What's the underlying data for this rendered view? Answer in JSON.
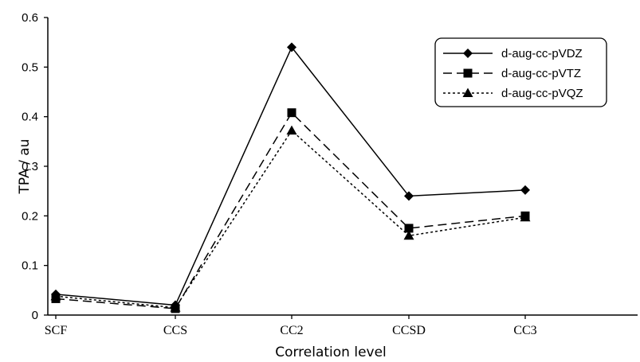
{
  "chart_data": {
    "type": "line",
    "title": "",
    "xlabel": "Correlation level",
    "ylabel": "TPA / au",
    "categories": [
      "SCF",
      "CCS",
      "CC2",
      "CCSD",
      "CC3"
    ],
    "ylim": [
      0,
      0.6
    ],
    "yticks": [
      "0",
      "0.1",
      "0.2",
      "0.3",
      "0.4",
      "0.5",
      "0.6"
    ],
    "grid": false,
    "legend_position": "top-right",
    "series": [
      {
        "name": "d-aug-cc-pVDZ",
        "marker": "diamond",
        "dash": "solid",
        "color": "#000000",
        "values": [
          0.042,
          0.02,
          0.54,
          0.24,
          0.252
        ]
      },
      {
        "name": "d-aug-cc-pVTZ",
        "marker": "square",
        "dash": "dashed",
        "color": "#000000",
        "values": [
          0.033,
          0.013,
          0.408,
          0.175,
          0.2
        ]
      },
      {
        "name": "d-aug-cc-pVQZ",
        "marker": "triangle",
        "dash": "dotted",
        "color": "#000000",
        "values": [
          0.038,
          0.015,
          0.372,
          0.16,
          0.197
        ]
      }
    ]
  }
}
